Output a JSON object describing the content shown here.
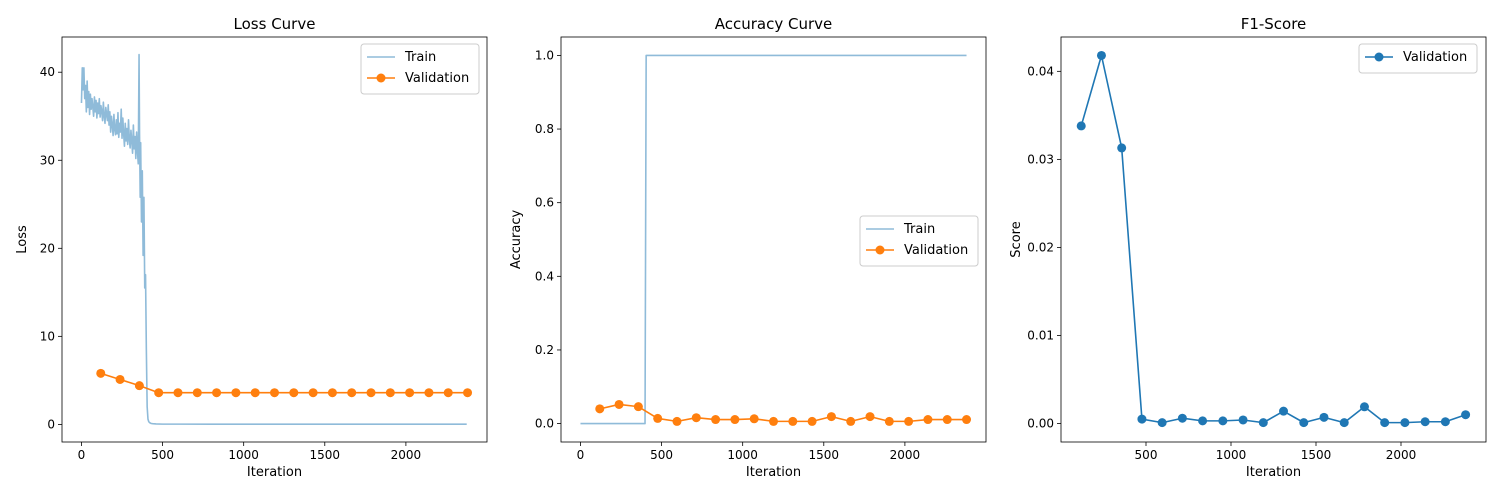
{
  "chart_data": [
    {
      "type": "line",
      "title": "Loss Curve",
      "xlabel": "Iteration",
      "ylabel": "Loss",
      "xlim": [
        -120,
        2500
      ],
      "ylim": [
        -2,
        44
      ],
      "xticks": [
        0,
        500,
        1000,
        1500,
        2000
      ],
      "yticks": [
        0,
        10,
        20,
        30,
        40
      ],
      "grid": false,
      "legend": "top-right",
      "series": [
        {
          "name": "Train",
          "style": "line",
          "color": "#8fbbd9",
          "x": [
            0,
            5,
            10,
            15,
            20,
            25,
            30,
            35,
            40,
            45,
            50,
            55,
            60,
            65,
            70,
            75,
            80,
            85,
            90,
            95,
            100,
            105,
            110,
            115,
            120,
            125,
            130,
            135,
            140,
            145,
            150,
            155,
            160,
            165,
            170,
            175,
            180,
            185,
            190,
            195,
            200,
            205,
            210,
            215,
            220,
            225,
            230,
            235,
            240,
            245,
            250,
            255,
            260,
            265,
            270,
            275,
            280,
            285,
            290,
            295,
            300,
            305,
            310,
            315,
            320,
            325,
            330,
            335,
            340,
            345,
            350,
            355,
            358,
            362,
            365,
            370,
            375,
            380,
            385,
            390,
            395,
            400,
            405,
            410,
            415,
            420,
            425,
            430,
            440,
            460,
            500,
            600,
            800,
            1000,
            1200,
            1400,
            1600,
            1800,
            2000,
            2200,
            2375
          ],
          "y": [
            36.5,
            40.5,
            38.0,
            40.5,
            37.0,
            38.5,
            35.5,
            39.0,
            36.0,
            37.8,
            35.2,
            37.5,
            35.8,
            37.0,
            36.0,
            35.0,
            37.2,
            35.5,
            36.8,
            34.8,
            36.5,
            35.3,
            37.0,
            34.9,
            36.2,
            35.6,
            34.5,
            36.6,
            35.0,
            34.2,
            36.0,
            35.2,
            34.5,
            36.3,
            34.0,
            35.5,
            33.2,
            35.0,
            34.0,
            32.8,
            35.2,
            33.5,
            32.9,
            34.6,
            33.0,
            35.4,
            32.6,
            34.2,
            33.2,
            35.8,
            32.5,
            34.8,
            33.0,
            31.6,
            34.2,
            32.2,
            33.6,
            31.8,
            34.6,
            32.4,
            31.4,
            33.4,
            32.2,
            30.8,
            34.0,
            31.3,
            32.7,
            30.2,
            33.2,
            31.1,
            29.6,
            42.0,
            33.0,
            25.8,
            32.0,
            23.0,
            28.8,
            19.2,
            25.8,
            15.5,
            17.0,
            8.5,
            2.0,
            0.6,
            0.3,
            0.2,
            0.15,
            0.1,
            0.08,
            0.05,
            0.03,
            0.03,
            0.02,
            0.02,
            0.02,
            0.02,
            0.02,
            0.02,
            0.02,
            0.02,
            0.02
          ]
        },
        {
          "name": "Validation",
          "style": "line-marker",
          "color": "#ff7f0e",
          "x": [
            119,
            238,
            357,
            476,
            595,
            714,
            833,
            952,
            1071,
            1190,
            1309,
            1428,
            1547,
            1666,
            1785,
            1904,
            2023,
            2142,
            2261,
            2380
          ],
          "y": [
            5.8,
            5.1,
            4.4,
            3.6,
            3.6,
            3.6,
            3.6,
            3.6,
            3.6,
            3.6,
            3.6,
            3.6,
            3.6,
            3.6,
            3.6,
            3.6,
            3.6,
            3.6,
            3.6,
            3.6
          ]
        }
      ]
    },
    {
      "type": "line",
      "title": "Accuracy Curve",
      "xlabel": "Iteration",
      "ylabel": "Accuracy",
      "xlim": [
        -120,
        2500
      ],
      "ylim": [
        -0.05,
        1.05
      ],
      "xticks": [
        0,
        500,
        1000,
        1500,
        2000
      ],
      "yticks": [
        0.0,
        0.2,
        0.4,
        0.6,
        0.8,
        1.0
      ],
      "ytick_decimals": 1,
      "grid": false,
      "legend": "center-right",
      "series": [
        {
          "name": "Train",
          "style": "line",
          "color": "#8fbbd9",
          "x": [
            0,
            398,
            405,
            2380
          ],
          "y": [
            0.0,
            0.0,
            1.0,
            1.0
          ]
        },
        {
          "name": "Validation",
          "style": "line-marker",
          "color": "#ff7f0e",
          "x": [
            119,
            238,
            357,
            476,
            595,
            714,
            833,
            952,
            1071,
            1190,
            1309,
            1428,
            1547,
            1666,
            1785,
            1904,
            2023,
            2142,
            2261,
            2380
          ],
          "y": [
            0.04,
            0.052,
            0.046,
            0.014,
            0.006,
            0.016,
            0.011,
            0.011,
            0.013,
            0.006,
            0.006,
            0.006,
            0.019,
            0.006,
            0.019,
            0.006,
            0.006,
            0.011,
            0.011,
            0.011
          ]
        }
      ]
    },
    {
      "type": "line",
      "title": "F1-Score",
      "xlabel": "Iteration",
      "ylabel": "Score",
      "xlim": [
        0,
        2500
      ],
      "ylim": [
        -0.0021,
        0.0439
      ],
      "xticks": [
        500,
        1000,
        1500,
        2000
      ],
      "yticks": [
        0.0,
        0.01,
        0.02,
        0.03,
        0.04
      ],
      "ytick_decimals": 2,
      "grid": false,
      "legend": "top-right",
      "series": [
        {
          "name": "Validation",
          "style": "line-marker",
          "color": "#1f77b4",
          "x": [
            119,
            238,
            357,
            476,
            595,
            714,
            833,
            952,
            1071,
            1190,
            1309,
            1428,
            1547,
            1666,
            1785,
            1904,
            2023,
            2142,
            2261,
            2380
          ],
          "y": [
            0.0338,
            0.0418,
            0.0313,
            0.0005,
            0.0001,
            0.0006,
            0.0003,
            0.0003,
            0.0004,
            0.0001,
            0.0014,
            0.0001,
            0.0007,
            0.0001,
            0.0019,
            0.0001,
            0.0001,
            0.0002,
            0.0002,
            0.001
          ]
        }
      ]
    }
  ]
}
